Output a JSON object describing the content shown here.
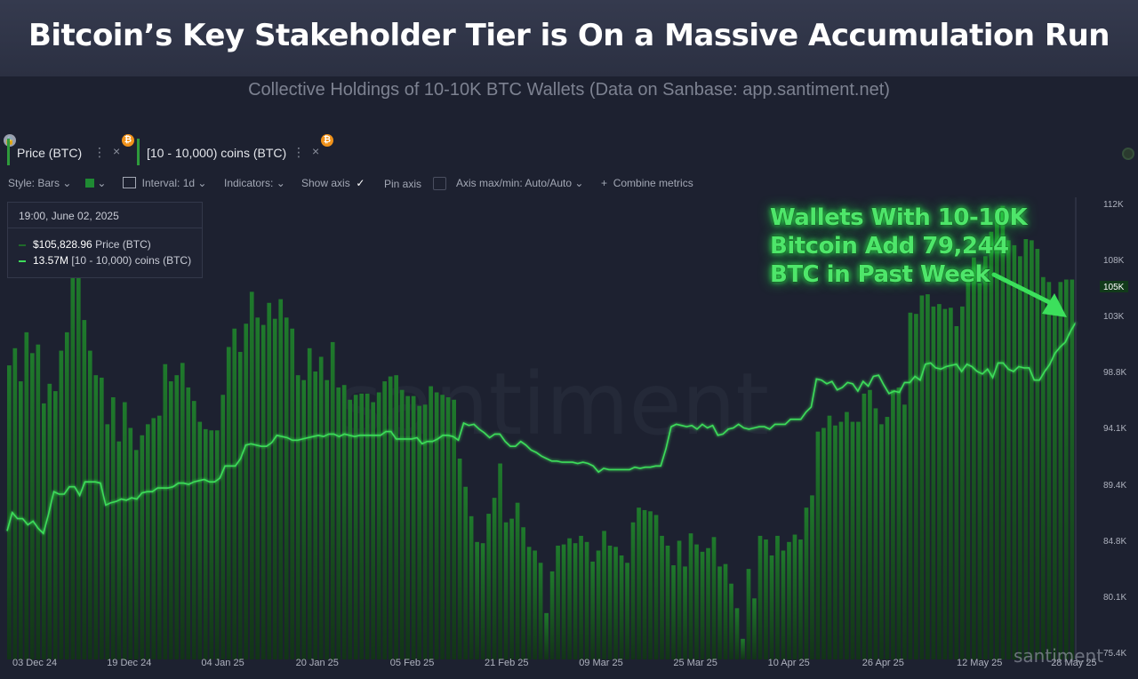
{
  "header": {
    "title": "Bitcoin’s Key Stakeholder Tier is On a Massive Accumulation Run",
    "subtitle": "Collective Holdings of 10-10K BTC Wallets (Data on Sanbase: app.santiment.net)"
  },
  "metrics": [
    {
      "label": "Price (BTC)",
      "more": "⋮",
      "close": "×",
      "badge": "₿"
    },
    {
      "label": "[10 - 10,000) coins (BTC)",
      "more": "⋮",
      "close": "×",
      "badge": "₿"
    }
  ],
  "toolbar": {
    "style": "Style: Bars",
    "interval": "Interval: 1d",
    "indicators": "Indicators:",
    "show_axis": "Show axis",
    "pin_axis": "Pin axis",
    "axis_minmax": "Axis max/min: Auto/Auto",
    "combine": "Combine metrics"
  },
  "tooltip": {
    "date": "19:00, June 02, 2025",
    "price_value": "$105,828.96",
    "price_label": "Price (BTC)",
    "holdings_value": "13.57M",
    "holdings_label": "[10 - 10,000) coins (BTC)"
  },
  "callout": {
    "line1": "Wallets With 10-10K",
    "line2": "Bitcoin  Add 79,244",
    "line3": "BTC in Past Week"
  },
  "watermark": "santiment",
  "watermark_small": "santiment",
  "price_tag": "105K",
  "colors": {
    "background": "#1d2130",
    "bars_top": "#1f7a2c",
    "bars_bottom": "#123417",
    "line": "#3ddc5a",
    "callout": "#4ee66a"
  },
  "chart_data": {
    "type": "bar",
    "overlay_type": "line",
    "y_axis": {
      "ticks": [
        "112K",
        "108K",
        "105K",
        "103K",
        "98.8K",
        "94.1K",
        "89.4K",
        "84.8K",
        "80.1K",
        "75.4K"
      ],
      "ylim": [
        75400,
        112000
      ]
    },
    "x_axis": {
      "ticks": [
        "03 Dec 24",
        "19 Dec 24",
        "04 Jan 25",
        "20 Jan 25",
        "05 Feb 25",
        "21 Feb 25",
        "09 Mar 25",
        "25 Mar 25",
        "10 Apr 25",
        "26 Apr 25",
        "12 May 25",
        "28 May 25"
      ]
    },
    "series": [
      {
        "name": "Price (BTC)",
        "render": "bars",
        "values": [
          98800,
          100200,
          97500,
          101500,
          99800,
          100500,
          95700,
          97300,
          96700,
          100000,
          101500,
          106000,
          106500,
          102500,
          100000,
          98000,
          97800,
          94000,
          96200,
          92600,
          95800,
          93700,
          91900,
          93100,
          94000,
          94500,
          94700,
          98900,
          97500,
          98000,
          99000,
          97000,
          95900,
          94200,
          93600,
          93500,
          93500,
          96400,
          100300,
          101800,
          99900,
          102200,
          104800,
          102700,
          102100,
          103900,
          102600,
          104200,
          102700,
          101800,
          98000,
          97600,
          100200,
          98300,
          99500,
          97600,
          100700,
          97000,
          97200,
          96000,
          96400,
          96500,
          96500,
          95800,
          96600,
          97500,
          97900,
          98000,
          96800,
          96300,
          96300,
          95500,
          95600,
          97100,
          96600,
          96400,
          96200,
          96000,
          91200,
          88900,
          86500,
          84400,
          84300,
          86700,
          88000,
          90800,
          86000,
          86300,
          87600,
          85600,
          84000,
          83700,
          82700,
          78600,
          82000,
          84100,
          84200,
          84700,
          84300,
          84900,
          84400,
          82800,
          83700,
          85300,
          84100,
          84000,
          83300,
          82700,
          86000,
          87200,
          87000,
          86900,
          86600,
          84900,
          84100,
          82500,
          84500,
          82400,
          85100,
          84200,
          83600,
          83900,
          84800,
          82400,
          82600,
          81000,
          79000,
          76500,
          82200,
          79800,
          84900,
          84600,
          83300,
          84900,
          83700,
          84400,
          85000,
          84600,
          87200,
          88200,
          93400,
          93700,
          94700,
          93900,
          94200,
          95000,
          94200,
          94200,
          96500,
          96800,
          95300,
          94000,
          94600,
          96800,
          97000,
          95600,
          103100,
          103000,
          104500,
          104600,
          103600,
          103800,
          103400,
          103500,
          102000,
          103600,
          106500,
          107600,
          105500,
          107700,
          109700,
          111500,
          111800,
          109000,
          108600,
          107700,
          109100,
          109000,
          108300,
          106000,
          105600,
          104000,
          105600,
          105800,
          105800
        ]
      },
      {
        "name": "[10 - 10,000) coins (BTC)",
        "render": "line",
        "values": [
          85300,
          86800,
          86300,
          86300,
          85800,
          86100,
          85500,
          85100,
          86700,
          88500,
          88300,
          88300,
          88900,
          88900,
          88200,
          89300,
          89300,
          89300,
          89200,
          87400,
          87600,
          87700,
          87900,
          87800,
          88000,
          87900,
          88400,
          88500,
          88500,
          88800,
          88800,
          88800,
          88900,
          89200,
          89200,
          89100,
          89300,
          89400,
          89500,
          89300,
          89300,
          89600,
          90600,
          90600,
          90600,
          91200,
          92300,
          92400,
          92300,
          92200,
          92200,
          92500,
          93100,
          93000,
          92900,
          92700,
          92700,
          92800,
          92900,
          93000,
          93100,
          93000,
          93200,
          93200,
          93000,
          93200,
          93100,
          93000,
          93100,
          93100,
          93100,
          93100,
          93100,
          93400,
          93400,
          92800,
          92800,
          92800,
          92800,
          92900,
          92400,
          92600,
          92600,
          92800,
          93100,
          93100,
          93000,
          92700,
          94100,
          93900,
          94000,
          93600,
          93300,
          92900,
          93200,
          93200,
          92600,
          92200,
          92200,
          92600,
          92300,
          91900,
          91700,
          91400,
          91200,
          91000,
          91000,
          90900,
          90900,
          90900,
          90800,
          90900,
          90800,
          90600,
          90100,
          90400,
          90300,
          90300,
          90300,
          90300,
          90300,
          90500,
          90400,
          90500,
          90500,
          90600,
          90600,
          92000,
          93800,
          94000,
          93900,
          93800,
          93900,
          93600,
          94000,
          93700,
          93900,
          93100,
          93200,
          93600,
          93700,
          94000,
          93700,
          93600,
          93700,
          93800,
          93800,
          93600,
          94000,
          94000,
          94000,
          94400,
          94400,
          94400,
          95000,
          95400,
          97700,
          97600,
          97300,
          97500,
          96800,
          97000,
          97400,
          97300,
          96700,
          97500,
          97100,
          97900,
          98000,
          97200,
          96500,
          96700,
          96600,
          97400,
          97400,
          97900,
          97600,
          98900,
          99000,
          98600,
          98500,
          98700,
          98800,
          98900,
          98300,
          98900,
          98700,
          98300,
          98100,
          98500,
          97800,
          99000,
          99000,
          98500,
          98300,
          98700,
          98600,
          98600,
          97600,
          97600,
          98300,
          98900,
          99800,
          100300,
          100700,
          101600,
          102300
        ]
      }
    ]
  }
}
